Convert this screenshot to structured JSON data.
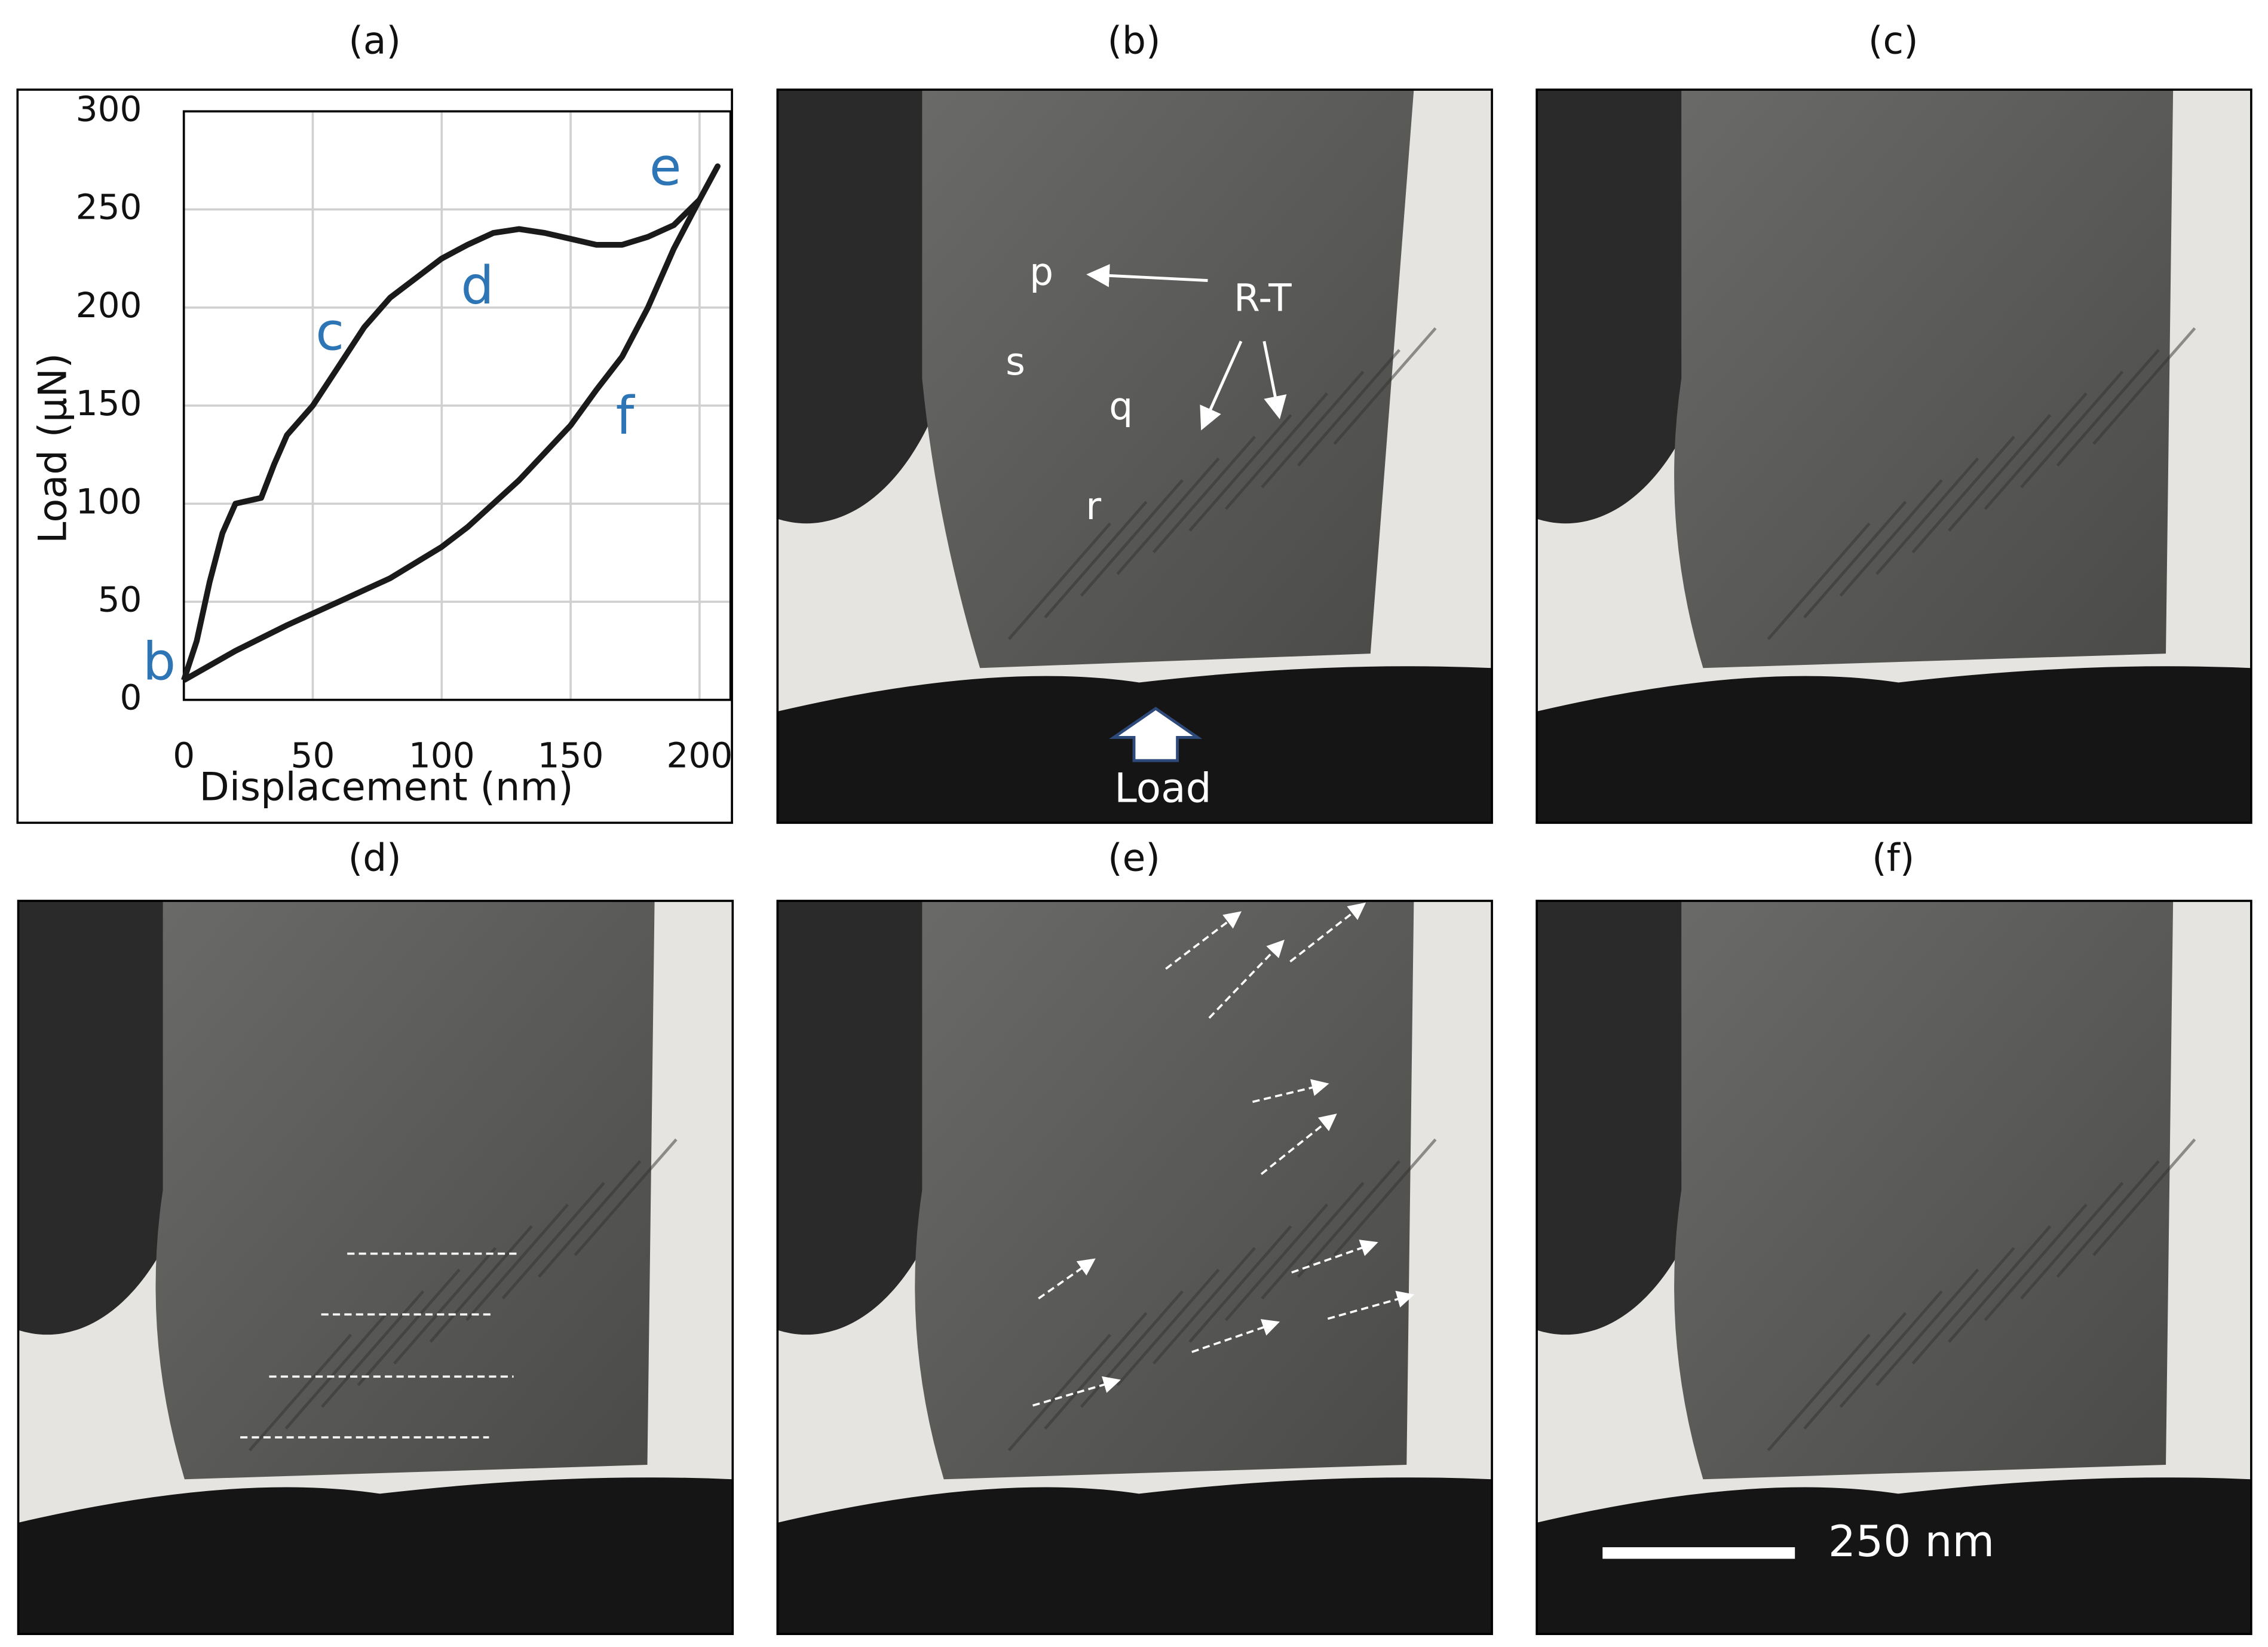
{
  "panel_labels": [
    "(a)",
    "(b)",
    "(c)",
    "(d)",
    "(e)",
    "(f)"
  ],
  "chart_data": {
    "type": "line",
    "xlabel": "Displacement (nm)",
    "ylabel": "Load (μN)",
    "x": [
      0,
      5,
      10,
      15,
      20,
      30,
      35,
      40,
      50,
      60,
      70,
      80,
      90,
      100,
      110,
      120,
      130,
      140,
      150,
      160,
      170,
      180,
      190,
      200,
      207,
      200,
      190,
      180,
      170,
      160,
      150,
      130,
      110,
      100,
      80,
      60,
      40,
      20,
      0
    ],
    "series": [
      {
        "color": "#1a1a1a",
        "values": [
          10,
          30,
          60,
          85,
          100,
          103,
          120,
          135,
          150,
          170,
          190,
          205,
          215,
          225,
          232,
          238,
          240,
          238,
          235,
          232,
          232,
          236,
          242,
          255,
          272,
          255,
          230,
          200,
          175,
          158,
          140,
          112,
          88,
          78,
          62,
          50,
          38,
          25,
          10
        ]
      }
    ],
    "xlim": [
      0,
      212
    ],
    "ylim": [
      0,
      300
    ],
    "xticks": [
      0,
      50,
      100,
      150,
      200
    ],
    "yticks": [
      0,
      50,
      100,
      150,
      200,
      250,
      300
    ],
    "grid": true,
    "annotations": [
      "b",
      "c",
      "d",
      "e",
      "f"
    ],
    "annotation_color": "#2e75b6"
  },
  "panel_b_labels": [
    "p",
    "s",
    "q",
    "r",
    "R-T"
  ],
  "load_label": "Load",
  "scale_bar": "250 nm"
}
